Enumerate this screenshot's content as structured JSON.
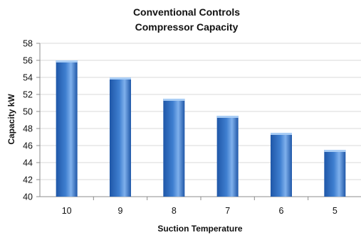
{
  "chart_data": {
    "type": "bar",
    "title": "Conventional Controls",
    "subtitle": "Compressor Capacity",
    "xlabel": "Suction Temperature",
    "ylabel": "Capacity kW",
    "categories": [
      "10",
      "9",
      "8",
      "7",
      "6",
      "5"
    ],
    "series": [
      {
        "values": [
          56,
          54,
          51.5,
          49.5,
          47.5,
          45.5
        ]
      }
    ],
    "ylim": [
      40,
      58
    ],
    "yticks": [
      "40",
      "42",
      "44",
      "46",
      "48",
      "50",
      "52",
      "54",
      "56",
      "58"
    ],
    "grid": true,
    "legend": "none",
    "colors": {
      "bar_dark": "#1f57a8",
      "bar_mid": "#3f7fd0",
      "bar_light": "#7fb0ec",
      "bar_top": "#a9cdf5",
      "grid": "#d9d9d9",
      "axis": "#8c8c8c"
    }
  }
}
